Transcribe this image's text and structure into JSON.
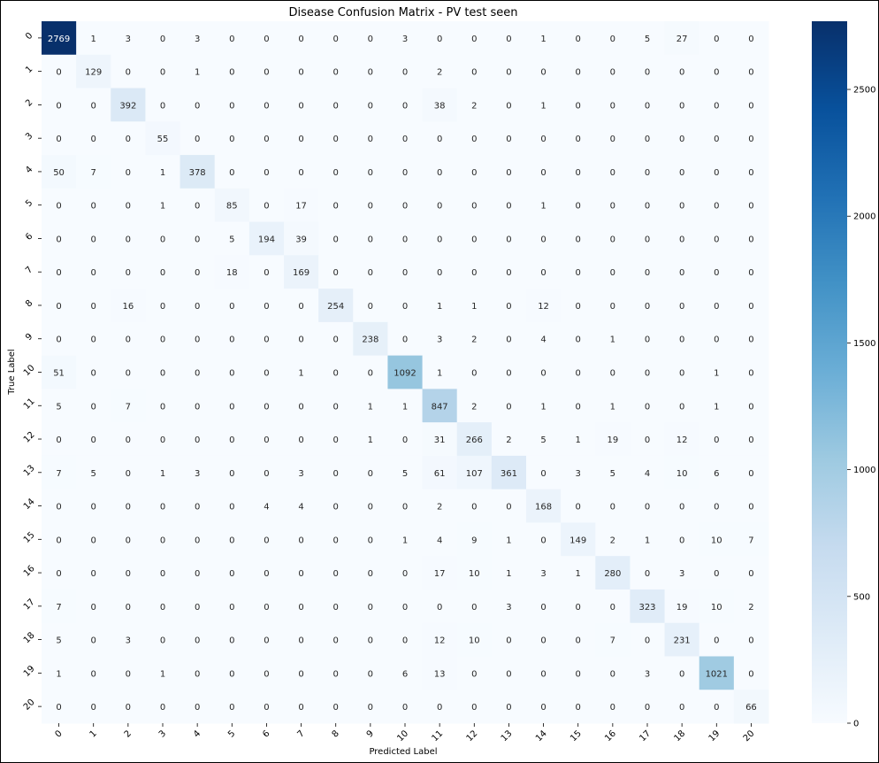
{
  "chart_data": {
    "type": "heatmap",
    "title": "Disease Confusion Matrix - PV test seen",
    "xlabel": "Predicted Label",
    "ylabel": "True Label",
    "x_categories": [
      "0",
      "1",
      "2",
      "3",
      "4",
      "5",
      "6",
      "7",
      "8",
      "9",
      "10",
      "11",
      "12",
      "13",
      "14",
      "15",
      "16",
      "17",
      "18",
      "19",
      "20"
    ],
    "y_categories": [
      "0",
      "1",
      "2",
      "3",
      "4",
      "5",
      "6",
      "7",
      "8",
      "9",
      "10",
      "11",
      "12",
      "13",
      "14",
      "15",
      "16",
      "17",
      "18",
      "19",
      "20"
    ],
    "values": [
      [
        2769,
        1,
        3,
        0,
        3,
        0,
        0,
        0,
        0,
        0,
        3,
        0,
        0,
        0,
        1,
        0,
        0,
        5,
        27,
        0,
        0
      ],
      [
        0,
        129,
        0,
        0,
        1,
        0,
        0,
        0,
        0,
        0,
        0,
        2,
        0,
        0,
        0,
        0,
        0,
        0,
        0,
        0,
        0
      ],
      [
        0,
        0,
        392,
        0,
        0,
        0,
        0,
        0,
        0,
        0,
        0,
        38,
        2,
        0,
        1,
        0,
        0,
        0,
        0,
        0,
        0
      ],
      [
        0,
        0,
        0,
        55,
        0,
        0,
        0,
        0,
        0,
        0,
        0,
        0,
        0,
        0,
        0,
        0,
        0,
        0,
        0,
        0,
        0
      ],
      [
        50,
        7,
        0,
        1,
        378,
        0,
        0,
        0,
        0,
        0,
        0,
        0,
        0,
        0,
        0,
        0,
        0,
        0,
        0,
        0,
        0
      ],
      [
        0,
        0,
        0,
        1,
        0,
        85,
        0,
        17,
        0,
        0,
        0,
        0,
        0,
        0,
        1,
        0,
        0,
        0,
        0,
        0,
        0
      ],
      [
        0,
        0,
        0,
        0,
        0,
        5,
        194,
        39,
        0,
        0,
        0,
        0,
        0,
        0,
        0,
        0,
        0,
        0,
        0,
        0,
        0
      ],
      [
        0,
        0,
        0,
        0,
        0,
        18,
        0,
        169,
        0,
        0,
        0,
        0,
        0,
        0,
        0,
        0,
        0,
        0,
        0,
        0,
        0
      ],
      [
        0,
        0,
        16,
        0,
        0,
        0,
        0,
        0,
        254,
        0,
        0,
        1,
        1,
        0,
        12,
        0,
        0,
        0,
        0,
        0,
        0
      ],
      [
        0,
        0,
        0,
        0,
        0,
        0,
        0,
        0,
        0,
        238,
        0,
        3,
        2,
        0,
        4,
        0,
        1,
        0,
        0,
        0,
        0
      ],
      [
        51,
        0,
        0,
        0,
        0,
        0,
        0,
        1,
        0,
        0,
        1092,
        1,
        0,
        0,
        0,
        0,
        0,
        0,
        0,
        1,
        0
      ],
      [
        5,
        0,
        7,
        0,
        0,
        0,
        0,
        0,
        0,
        1,
        1,
        847,
        2,
        0,
        1,
        0,
        1,
        0,
        0,
        1,
        0
      ],
      [
        0,
        0,
        0,
        0,
        0,
        0,
        0,
        0,
        0,
        1,
        0,
        31,
        266,
        2,
        5,
        1,
        19,
        0,
        12,
        0,
        0
      ],
      [
        7,
        5,
        0,
        1,
        3,
        0,
        0,
        3,
        0,
        0,
        5,
        61,
        107,
        361,
        0,
        3,
        5,
        4,
        10,
        6,
        0
      ],
      [
        0,
        0,
        0,
        0,
        0,
        0,
        4,
        4,
        0,
        0,
        0,
        2,
        0,
        0,
        168,
        0,
        0,
        0,
        0,
        0,
        0
      ],
      [
        0,
        0,
        0,
        0,
        0,
        0,
        0,
        0,
        0,
        0,
        1,
        4,
        9,
        1,
        0,
        149,
        2,
        1,
        0,
        10,
        7
      ],
      [
        0,
        0,
        0,
        0,
        0,
        0,
        0,
        0,
        0,
        0,
        0,
        17,
        10,
        1,
        3,
        1,
        280,
        0,
        3,
        0,
        0
      ],
      [
        7,
        0,
        0,
        0,
        0,
        0,
        0,
        0,
        0,
        0,
        0,
        0,
        0,
        3,
        0,
        0,
        0,
        323,
        19,
        10,
        2
      ],
      [
        5,
        0,
        3,
        0,
        0,
        0,
        0,
        0,
        0,
        0,
        0,
        12,
        10,
        0,
        0,
        0,
        7,
        0,
        231,
        0,
        0
      ],
      [
        1,
        0,
        0,
        1,
        0,
        0,
        0,
        0,
        0,
        0,
        6,
        13,
        0,
        0,
        0,
        0,
        0,
        3,
        0,
        1021,
        0
      ],
      [
        0,
        0,
        0,
        0,
        0,
        0,
        0,
        0,
        0,
        0,
        0,
        0,
        0,
        0,
        0,
        0,
        0,
        0,
        0,
        0,
        66
      ]
    ],
    "colorbar": {
      "min": 0,
      "max": 2769,
      "ticks": [
        0,
        500,
        1000,
        1500,
        2000,
        2500
      ],
      "colormap": "Blues",
      "low_color": "#f7fbff",
      "high_color": "#08306b"
    }
  }
}
